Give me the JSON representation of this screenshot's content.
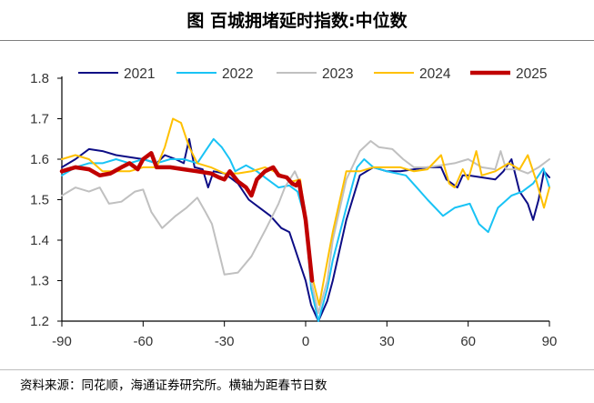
{
  "chart_data": {
    "type": "line",
    "title": "图  百城拥堵延时指数:中位数",
    "source": "资料来源：同花顺，海通证券研究所。横轴为距春节日数",
    "xlim": [
      -90,
      90
    ],
    "ylim": [
      1.2,
      1.8
    ],
    "xticks": [
      -90,
      -60,
      -30,
      0,
      30,
      60,
      90
    ],
    "yticks": [
      1.2,
      1.3,
      1.4,
      1.5,
      1.6,
      1.7,
      1.8
    ],
    "ytick_labels": [
      "1.2",
      "1.3",
      "1.4",
      "1.5",
      "1.6",
      "1.7",
      "1.8"
    ],
    "xtick_labels": [
      "-90",
      "-60",
      "-30",
      "0",
      "30",
      "60",
      "90"
    ],
    "grid": false,
    "legend": "top",
    "series": [
      {
        "name": "2021",
        "color": "#0d0d85",
        "width": 2,
        "points": [
          [
            -90,
            1.58
          ],
          [
            -85,
            1.6
          ],
          [
            -80,
            1.625
          ],
          [
            -75,
            1.62
          ],
          [
            -70,
            1.61
          ],
          [
            -65,
            1.605
          ],
          [
            -60,
            1.6
          ],
          [
            -55,
            1.59
          ],
          [
            -52,
            1.61
          ],
          [
            -48,
            1.6
          ],
          [
            -45,
            1.59
          ],
          [
            -43,
            1.65
          ],
          [
            -41,
            1.58
          ],
          [
            -38,
            1.575
          ],
          [
            -36,
            1.53
          ],
          [
            -34,
            1.57
          ],
          [
            -30,
            1.565
          ],
          [
            -25,
            1.54
          ],
          [
            -21,
            1.5
          ],
          [
            -17,
            1.48
          ],
          [
            -13,
            1.46
          ],
          [
            -9,
            1.43
          ],
          [
            -6,
            1.42
          ],
          [
            -4,
            1.38
          ],
          [
            -2,
            1.34
          ],
          [
            0,
            1.3
          ],
          [
            2,
            1.24
          ],
          [
            4.7,
            1.2
          ],
          [
            8,
            1.25
          ],
          [
            10,
            1.3
          ],
          [
            15,
            1.45
          ],
          [
            20,
            1.56
          ],
          [
            25,
            1.58
          ],
          [
            30,
            1.57
          ],
          [
            35,
            1.57
          ],
          [
            40,
            1.575
          ],
          [
            45,
            1.58
          ],
          [
            50,
            1.58
          ],
          [
            52,
            1.55
          ],
          [
            56,
            1.53
          ],
          [
            58,
            1.56
          ],
          [
            60,
            1.56
          ],
          [
            65,
            1.555
          ],
          [
            70,
            1.55
          ],
          [
            73,
            1.57
          ],
          [
            76,
            1.6
          ],
          [
            79,
            1.52
          ],
          [
            82,
            1.49
          ],
          [
            84,
            1.45
          ],
          [
            86,
            1.5
          ],
          [
            88,
            1.57
          ],
          [
            90,
            1.555
          ]
        ]
      },
      {
        "name": "2022",
        "color": "#19c3f5",
        "width": 2,
        "points": [
          [
            -90,
            1.56
          ],
          [
            -85,
            1.58
          ],
          [
            -80,
            1.59
          ],
          [
            -75,
            1.59
          ],
          [
            -70,
            1.6
          ],
          [
            -65,
            1.59
          ],
          [
            -60,
            1.6
          ],
          [
            -55,
            1.59
          ],
          [
            -50,
            1.6
          ],
          [
            -45,
            1.6
          ],
          [
            -40,
            1.59
          ],
          [
            -37,
            1.62
          ],
          [
            -34,
            1.65
          ],
          [
            -31,
            1.63
          ],
          [
            -28,
            1.6
          ],
          [
            -26,
            1.57
          ],
          [
            -22,
            1.585
          ],
          [
            -18,
            1.57
          ],
          [
            -14,
            1.55
          ],
          [
            -10,
            1.53
          ],
          [
            -6,
            1.535
          ],
          [
            -3,
            1.52
          ],
          [
            0,
            1.45
          ],
          [
            2,
            1.28
          ],
          [
            4.7,
            1.2
          ],
          [
            8,
            1.28
          ],
          [
            10,
            1.35
          ],
          [
            15,
            1.48
          ],
          [
            19,
            1.58
          ],
          [
            21.6,
            1.6
          ],
          [
            25,
            1.58
          ],
          [
            30,
            1.57
          ],
          [
            37,
            1.56
          ],
          [
            41,
            1.53
          ],
          [
            45,
            1.5
          ],
          [
            50.7,
            1.46
          ],
          [
            55,
            1.48
          ],
          [
            60.6,
            1.49
          ],
          [
            64,
            1.44
          ],
          [
            67.4,
            1.42
          ],
          [
            71,
            1.48
          ],
          [
            76,
            1.51
          ],
          [
            80,
            1.52
          ],
          [
            84,
            1.54
          ],
          [
            87.8,
            1.577
          ],
          [
            90,
            1.53
          ]
        ]
      },
      {
        "name": "2023",
        "color": "#c0c0c0",
        "width": 2,
        "points": [
          [
            -90,
            1.51
          ],
          [
            -85,
            1.53
          ],
          [
            -80,
            1.52
          ],
          [
            -76,
            1.53
          ],
          [
            -72.6,
            1.49
          ],
          [
            -68,
            1.495
          ],
          [
            -63,
            1.52
          ],
          [
            -60,
            1.525
          ],
          [
            -57,
            1.47
          ],
          [
            -53,
            1.43
          ],
          [
            -48,
            1.46
          ],
          [
            -44,
            1.48
          ],
          [
            -40,
            1.505
          ],
          [
            -37,
            1.47
          ],
          [
            -34.6,
            1.44
          ],
          [
            -32,
            1.37
          ],
          [
            -30,
            1.315
          ],
          [
            -25,
            1.32
          ],
          [
            -20,
            1.36
          ],
          [
            -14.5,
            1.43
          ],
          [
            -10,
            1.49
          ],
          [
            -7.7,
            1.53
          ],
          [
            -4,
            1.57
          ],
          [
            -2,
            1.54
          ],
          [
            0,
            1.45
          ],
          [
            2,
            1.3
          ],
          [
            4.7,
            1.22
          ],
          [
            8,
            1.3
          ],
          [
            10,
            1.4
          ],
          [
            15,
            1.55
          ],
          [
            20,
            1.62
          ],
          [
            24,
            1.645
          ],
          [
            27,
            1.63
          ],
          [
            32,
            1.625
          ],
          [
            36,
            1.6
          ],
          [
            40,
            1.58
          ],
          [
            45,
            1.58
          ],
          [
            50,
            1.585
          ],
          [
            55,
            1.59
          ],
          [
            60,
            1.6
          ],
          [
            65,
            1.58
          ],
          [
            70,
            1.575
          ],
          [
            72,
            1.62
          ],
          [
            74,
            1.575
          ],
          [
            78,
            1.575
          ],
          [
            82,
            1.565
          ],
          [
            86,
            1.58
          ],
          [
            90,
            1.6
          ]
        ]
      },
      {
        "name": "2024",
        "color": "#ffc000",
        "width": 2,
        "points": [
          [
            -90,
            1.6
          ],
          [
            -85,
            1.61
          ],
          [
            -80,
            1.6
          ],
          [
            -75,
            1.57
          ],
          [
            -70,
            1.57
          ],
          [
            -65,
            1.57
          ],
          [
            -60,
            1.58
          ],
          [
            -55,
            1.58
          ],
          [
            -52,
            1.63
          ],
          [
            -49,
            1.7
          ],
          [
            -46,
            1.69
          ],
          [
            -43,
            1.63
          ],
          [
            -40,
            1.59
          ],
          [
            -35,
            1.58
          ],
          [
            -30,
            1.565
          ],
          [
            -25,
            1.565
          ],
          [
            -20,
            1.57
          ],
          [
            -15,
            1.58
          ],
          [
            -10,
            1.565
          ],
          [
            -5,
            1.545
          ],
          [
            -2,
            1.55
          ],
          [
            0,
            1.45
          ],
          [
            2,
            1.32
          ],
          [
            5,
            1.24
          ],
          [
            10,
            1.42
          ],
          [
            15,
            1.57
          ],
          [
            20,
            1.57
          ],
          [
            25,
            1.58
          ],
          [
            30,
            1.58
          ],
          [
            35,
            1.58
          ],
          [
            40,
            1.57
          ],
          [
            45,
            1.575
          ],
          [
            50,
            1.61
          ],
          [
            53,
            1.54
          ],
          [
            55,
            1.53
          ],
          [
            58,
            1.575
          ],
          [
            60,
            1.55
          ],
          [
            63,
            1.62
          ],
          [
            65,
            1.56
          ],
          [
            70,
            1.57
          ],
          [
            75,
            1.59
          ],
          [
            79,
            1.575
          ],
          [
            82,
            1.61
          ],
          [
            85,
            1.55
          ],
          [
            88,
            1.48
          ],
          [
            90,
            1.53
          ]
        ]
      },
      {
        "name": "2025",
        "color": "#c00000",
        "width": 4.5,
        "points": [
          [
            -90,
            1.57
          ],
          [
            -85,
            1.58
          ],
          [
            -80,
            1.575
          ],
          [
            -76,
            1.56
          ],
          [
            -72,
            1.565
          ],
          [
            -68,
            1.58
          ],
          [
            -65,
            1.59
          ],
          [
            -62,
            1.575
          ],
          [
            -60,
            1.6
          ],
          [
            -57,
            1.615
          ],
          [
            -55,
            1.58
          ],
          [
            -50,
            1.58
          ],
          [
            -45,
            1.575
          ],
          [
            -40,
            1.57
          ],
          [
            -35,
            1.565
          ],
          [
            -32,
            1.555
          ],
          [
            -30,
            1.55
          ],
          [
            -28,
            1.57
          ],
          [
            -25,
            1.545
          ],
          [
            -22,
            1.53
          ],
          [
            -20,
            1.51
          ],
          [
            -18,
            1.55
          ],
          [
            -15,
            1.57
          ],
          [
            -12,
            1.58
          ],
          [
            -10,
            1.56
          ],
          [
            -7,
            1.555
          ],
          [
            -5,
            1.54
          ],
          [
            -3.5,
            1.535
          ],
          [
            -2.5,
            1.545
          ],
          [
            0,
            1.45
          ],
          [
            2.4,
            1.3
          ]
        ]
      }
    ]
  }
}
